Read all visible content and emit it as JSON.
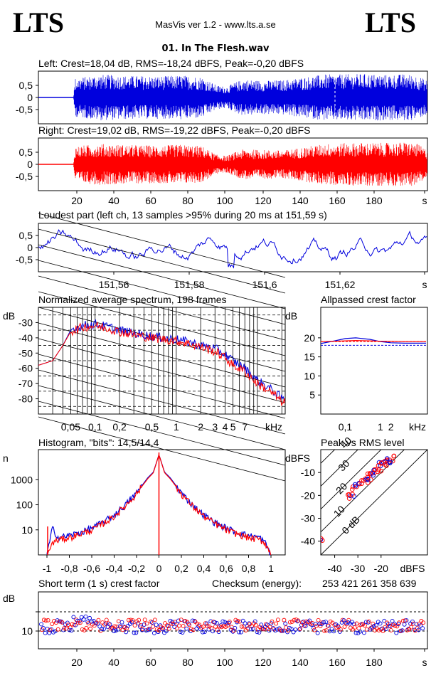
{
  "header": {
    "logo_left": "LTS",
    "logo_right": "LTS",
    "app_title": "MasVis ver 1.2 - www.lts.a.se",
    "file_name": "01. In The Flesh.wav"
  },
  "colors": {
    "left": "#0000dd",
    "right": "#ff0000",
    "axis": "#000000"
  },
  "chart_data": [
    {
      "id": "left-waveform",
      "type": "line",
      "title": "Left: Crest=18,04 dB, RMS=-18,24 dBFS, Peak=-0,20 dBFS",
      "ylim": [
        -1,
        1
      ],
      "yticks": [
        "0,5",
        "0",
        "-0,5"
      ],
      "envelope_x": [
        0,
        17,
        18,
        30,
        45,
        60,
        70,
        80,
        87,
        92,
        96,
        100,
        110,
        120,
        130,
        140,
        150,
        160,
        170,
        180,
        185,
        190
      ],
      "envelope_y": [
        0,
        0,
        0.8,
        0.95,
        0.9,
        0.88,
        0.92,
        0.85,
        0.5,
        0.45,
        0.62,
        0.75,
        0.7,
        0.72,
        0.85,
        0.95,
        0.96,
        0.98,
        0.94,
        0.97,
        0.9,
        0.7
      ]
    },
    {
      "id": "right-waveform",
      "type": "line",
      "title": "Right: Crest=19,02 dB, RMS=-19,22 dBFS, Peak=-0,20 dBFS",
      "ylim": [
        -1,
        1
      ],
      "yticks": [
        "0,5",
        "0",
        "-0,5"
      ],
      "xticks": [
        "20",
        "40",
        "60",
        "80",
        "100",
        "120",
        "140",
        "160",
        "180",
        "s"
      ],
      "envelope_x": [
        0,
        17,
        18,
        30,
        45,
        60,
        70,
        80,
        87,
        92,
        96,
        100,
        110,
        120,
        130,
        140,
        150,
        160,
        170,
        180,
        185,
        190
      ],
      "envelope_y": [
        0,
        0,
        0.75,
        0.85,
        0.8,
        0.78,
        0.82,
        0.75,
        0.4,
        0.35,
        0.5,
        0.62,
        0.6,
        0.58,
        0.72,
        0.85,
        0.88,
        0.9,
        0.88,
        0.92,
        0.85,
        0.6
      ]
    },
    {
      "id": "loudest-part",
      "type": "line",
      "title": "Loudest part (left  ch, 13 samples >95% during 20 ms at 151,59 s)",
      "ylim": [
        -1,
        1
      ],
      "yticks": [
        "0,5",
        "0",
        "-0,5"
      ],
      "xticks": [
        "151,56",
        "151,58",
        "151,6",
        "151,62",
        "s"
      ]
    },
    {
      "id": "spectrum",
      "type": "line",
      "title": "Normalized average spectrum, 198 frames",
      "ylabel": "dB",
      "yticks": [
        "-30",
        "-40",
        "-50",
        "-60",
        "-70",
        "-80"
      ],
      "xticks": [
        "0,05",
        "0,1",
        "0,2",
        "0,5",
        "1",
        "2",
        "3",
        "4",
        "5",
        "7",
        "kHz"
      ],
      "x_khz": [
        0.02,
        0.03,
        0.04,
        0.05,
        0.07,
        0.1,
        0.15,
        0.2,
        0.3,
        0.5,
        0.7,
        1,
        1.5,
        2,
        3,
        4,
        5,
        7,
        10,
        15,
        20
      ],
      "left_db": [
        -58,
        -55,
        -45,
        -35,
        -32,
        -31,
        -33,
        -35,
        -37,
        -39,
        -40,
        -41,
        -43,
        -45,
        -47,
        -51,
        -55,
        -60,
        -68,
        -74,
        -80
      ],
      "right_db": [
        -58,
        -55,
        -45,
        -36,
        -33,
        -32,
        -34,
        -36,
        -38,
        -40,
        -41,
        -42,
        -44,
        -46,
        -49,
        -53,
        -58,
        -62,
        -70,
        -76,
        -82
      ]
    },
    {
      "id": "allpassed-crest",
      "type": "line",
      "title": "Allpassed crest factor",
      "ylabel": "dB",
      "yticks": [
        "20",
        "15",
        "10",
        "5"
      ],
      "xticks": [
        "0,1",
        "1",
        "2",
        "kHz"
      ],
      "x_khz": [
        0.02,
        0.05,
        0.1,
        0.2,
        0.5,
        1,
        2,
        5,
        10,
        20
      ],
      "left_db": [
        18.5,
        19.2,
        19.8,
        20.0,
        19.6,
        19.0,
        18.7,
        18.6,
        18.6,
        18.6
      ],
      "right_db": [
        19.0,
        19.1,
        19.2,
        19.3,
        19.2,
        19.1,
        19.1,
        19.0,
        19.0,
        19.0
      ],
      "left_ref_db": 18.04,
      "right_ref_db": 19.02
    },
    {
      "id": "histogram",
      "type": "line",
      "title": "Histogram, \"bits\": 14,5/14,4",
      "ylabel": "n",
      "yticks": [
        "1000",
        "100",
        "10"
      ],
      "xticks": [
        "-1",
        "-0,8",
        "-0,6",
        "-0,4",
        "-0,2",
        "0",
        "0,2",
        "0,4",
        "0,6",
        "0,8",
        "1"
      ],
      "x": [
        -1,
        -0.95,
        -0.9,
        -0.8,
        -0.7,
        -0.6,
        -0.5,
        -0.4,
        -0.3,
        -0.2,
        -0.1,
        -0.05,
        0,
        0.05,
        0.1,
        0.2,
        0.3,
        0.4,
        0.5,
        0.6,
        0.7,
        0.8,
        0.9,
        0.95,
        1
      ],
      "left_n": [
        1,
        12,
        5,
        6,
        8,
        12,
        20,
        40,
        100,
        300,
        1200,
        2000,
        10000,
        2000,
        1200,
        300,
        100,
        40,
        20,
        12,
        8,
        6,
        5,
        3,
        1
      ],
      "right_n": [
        1,
        3,
        4,
        5,
        7,
        10,
        18,
        35,
        90,
        280,
        1100,
        1900,
        10000,
        1900,
        1100,
        280,
        90,
        35,
        18,
        10,
        7,
        5,
        4,
        3,
        1
      ]
    },
    {
      "id": "peak-vs-rms",
      "type": "scatter",
      "title": "Peak vs RMS level",
      "ylabel": "dBFS",
      "xlabel": "dBFS",
      "yticks": [
        "-10",
        "-20",
        "-30",
        "-40"
      ],
      "xticks": [
        "-40",
        "-30",
        "-20"
      ],
      "diagonal_labels": [
        "40",
        "30",
        "20",
        "10",
        "0 dB"
      ],
      "rms_dbfs": [
        -45,
        -34,
        -33,
        -31,
        -30,
        -28,
        -27,
        -26,
        -25,
        -24,
        -23,
        -22,
        -21,
        -20,
        -19,
        -18,
        -17,
        -16,
        -15
      ],
      "peak_dbfs": [
        -39,
        -21,
        -20,
        -17,
        -16,
        -14,
        -13,
        -13,
        -12,
        -11,
        -10,
        -9,
        -8,
        -7,
        -6,
        -6,
        -5,
        -4,
        -4
      ]
    },
    {
      "id": "short-term-crest",
      "type": "scatter",
      "title": "Short term (1 s) crest factor",
      "ylabel": "dB",
      "yticks": [
        "10"
      ],
      "xticks": [
        "20",
        "40",
        "60",
        "80",
        "100",
        "120",
        "140",
        "160",
        "180",
        "s"
      ],
      "left_mean_db": 11.5,
      "right_mean_db": 12.0
    }
  ],
  "checksum": {
    "label": "Checksum (energy):",
    "value": "253 421 261 358 639"
  }
}
